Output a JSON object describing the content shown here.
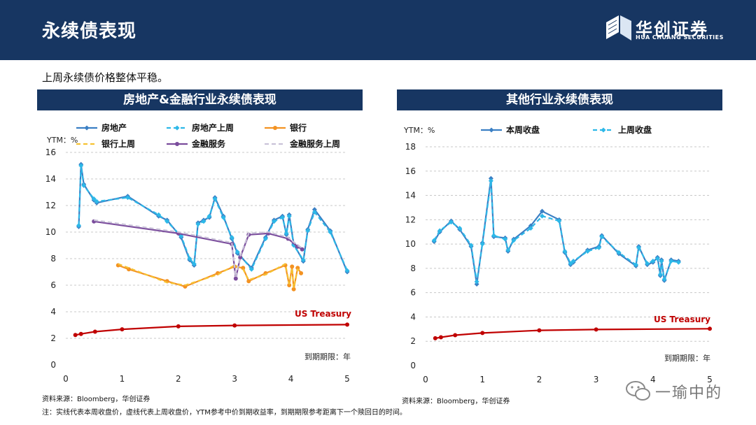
{
  "header": {
    "title": "永续债表现"
  },
  "logo": {
    "name": "华创证券",
    "sub": "HUA CHUANG SECURITIES"
  },
  "subtitle": "上周永续债价格整体平稳。",
  "panel_left": {
    "title": "房地产&金融行业永续债表现"
  },
  "panel_right": {
    "title": "其他行业永续债表现"
  },
  "source_left": "资料来源：Bloomberg，华创证券",
  "source_right": "资料来源：Bloomberg，华创证券",
  "footnote": "注：实线代表本周收盘价，虚线代表上周收盘价，YTM参考中价到期收益率，到期期限参考距离下一个赎回日的时间。",
  "watermark": "一瑜中的",
  "colors": {
    "navy": "#173662",
    "blue": "#3a7fc4",
    "cyan": "#2db8e8",
    "orange": "#f39222",
    "yellow": "#f6c233",
    "purple": "#7a4c9c",
    "lavender": "#c9c2d8",
    "red": "#c00000"
  },
  "chart_data": [
    {
      "type": "line",
      "title": "房地产&金融行业永续债表现",
      "ylabel": "YTM：%",
      "xlabel": "到期期限：年",
      "xlim": [
        0,
        5
      ],
      "ylim": [
        0,
        16
      ],
      "xticks": [
        0,
        1,
        2,
        3,
        4,
        5
      ],
      "yticks": [
        0,
        2,
        4,
        6,
        8,
        10,
        12,
        14,
        16
      ],
      "annotation": "US Treasury",
      "legend": [
        "房地产",
        "房地产上周",
        "银行",
        "银行上周",
        "金融服务",
        "金融服务上周"
      ],
      "series": [
        {
          "name": "房地产",
          "style": "solid",
          "color": "#3a7fc4",
          "marker": "diamond",
          "x": [
            0.23,
            0.27,
            0.32,
            0.5,
            0.55,
            1.1,
            1.65,
            1.8,
            2.05,
            2.2,
            2.28,
            2.35,
            2.45,
            2.55,
            2.65,
            2.8,
            2.95,
            3.05,
            3.3,
            3.55,
            3.7,
            3.85,
            3.92,
            3.97,
            4.05,
            4.22,
            4.3,
            4.42,
            4.7,
            5.0
          ],
          "y": [
            10.4,
            15.1,
            13.6,
            12.4,
            12.2,
            12.7,
            11.2,
            10.9,
            9.6,
            7.9,
            7.5,
            10.7,
            10.9,
            11.1,
            12.6,
            11.2,
            9.5,
            8.4,
            7.3,
            9.6,
            10.9,
            11.2,
            9.8,
            11.3,
            9.1,
            7.8,
            10.2,
            11.7,
            10.1,
            7.0
          ]
        },
        {
          "name": "房地产上周",
          "style": "dashed",
          "color": "#2db8e8",
          "marker": "diamond",
          "x": [
            0.23,
            0.27,
            0.32,
            0.5,
            0.55,
            1.1,
            1.65,
            1.8,
            2.05,
            2.2,
            2.28,
            2.35,
            2.45,
            2.55,
            2.65,
            2.8,
            2.95,
            3.05,
            3.3,
            3.55,
            3.7,
            3.85,
            3.92,
            3.97,
            4.05,
            4.22,
            4.3,
            4.42,
            4.7,
            5.0
          ],
          "y": [
            10.5,
            15.0,
            13.5,
            12.5,
            12.3,
            12.6,
            11.3,
            10.8,
            9.7,
            8.0,
            7.6,
            10.6,
            10.8,
            11.2,
            12.5,
            11.1,
            9.6,
            8.5,
            7.2,
            9.5,
            10.8,
            11.1,
            9.9,
            11.2,
            9.0,
            7.9,
            10.1,
            11.5,
            10.0,
            7.1
          ]
        },
        {
          "name": "银行",
          "style": "solid",
          "color": "#f39222",
          "marker": "circle",
          "x": [
            0.93,
            1.12,
            1.8,
            2.12,
            2.7,
            3.0,
            3.15,
            3.25,
            3.55,
            3.9,
            3.97,
            4.02,
            4.05,
            4.12,
            4.18
          ],
          "y": [
            7.5,
            7.2,
            6.3,
            5.9,
            6.9,
            7.4,
            7.3,
            6.3,
            6.9,
            7.5,
            6.0,
            7.4,
            5.7,
            7.3,
            6.9
          ]
        },
        {
          "name": "银行上周",
          "style": "dashed",
          "color": "#f6c233",
          "marker": "none",
          "x": [
            0.93,
            1.12,
            1.8,
            2.12,
            2.7,
            3.0,
            3.15,
            3.25,
            3.55,
            3.9,
            3.97,
            4.02,
            4.05,
            4.12,
            4.18
          ],
          "y": [
            7.6,
            7.3,
            6.2,
            6.0,
            6.8,
            7.5,
            7.2,
            6.4,
            6.8,
            7.6,
            6.1,
            7.3,
            5.8,
            7.2,
            7.0
          ]
        },
        {
          "name": "金融服务",
          "style": "solid",
          "color": "#7a4c9c",
          "marker": "circle",
          "x": [
            0.5,
            2.0,
            2.95,
            3.02,
            3.1,
            3.25,
            3.6,
            3.95,
            4.12,
            4.2
          ],
          "y": [
            10.8,
            9.9,
            9.1,
            6.5,
            8.1,
            9.8,
            9.9,
            9.5,
            8.9,
            8.7
          ]
        },
        {
          "name": "金融服务上周",
          "style": "dashed",
          "color": "#c9c2d8",
          "marker": "none",
          "x": [
            0.5,
            2.0,
            2.95,
            3.02,
            3.1,
            3.25,
            3.6,
            3.95,
            4.12,
            4.2
          ],
          "y": [
            10.9,
            10.0,
            9.2,
            6.6,
            8.2,
            9.9,
            10.0,
            9.6,
            9.0,
            8.8
          ]
        },
        {
          "name": "US Treasury",
          "style": "solid",
          "color": "#c00000",
          "marker": "circle",
          "x": [
            0.17,
            0.27,
            0.52,
            1.0,
            2.0,
            3.0,
            5.0
          ],
          "y": [
            2.25,
            2.33,
            2.5,
            2.68,
            2.9,
            2.97,
            3.03
          ]
        }
      ]
    },
    {
      "type": "line",
      "title": "其他行业永续债表现",
      "ylabel": "YTM：%",
      "xlabel": "到期期限：年",
      "xlim": [
        0,
        5
      ],
      "ylim": [
        0,
        18
      ],
      "xticks": [
        0,
        1,
        2,
        3,
        4,
        5
      ],
      "yticks": [
        0,
        2,
        4,
        6,
        8,
        10,
        12,
        14,
        16,
        18
      ],
      "annotation": "US Treasury",
      "legend": [
        "本周收盘",
        "上周收盘"
      ],
      "series": [
        {
          "name": "本周收盘",
          "style": "solid",
          "color": "#3a7fc4",
          "marker": "diamond",
          "x": [
            0.15,
            0.25,
            0.45,
            0.6,
            0.8,
            0.9,
            1.0,
            1.15,
            1.2,
            1.4,
            1.45,
            1.55,
            1.85,
            2.05,
            2.35,
            2.45,
            2.55,
            2.6,
            2.85,
            3.05,
            3.1,
            3.4,
            3.7,
            3.75,
            3.9,
            4.0,
            4.08,
            4.13,
            4.15,
            4.2,
            4.32,
            4.45
          ],
          "y": [
            10.2,
            11.0,
            11.9,
            11.2,
            9.8,
            6.7,
            10.1,
            15.4,
            10.6,
            10.5,
            9.4,
            10.4,
            11.5,
            12.7,
            12.0,
            9.3,
            8.3,
            8.5,
            9.5,
            9.8,
            10.7,
            9.2,
            8.2,
            9.8,
            8.3,
            8.5,
            8.9,
            7.4,
            8.7,
            7.0,
            8.7,
            8.6
          ]
        },
        {
          "name": "上周收盘",
          "style": "dashed",
          "color": "#2db8e8",
          "marker": "diamond",
          "x": [
            0.15,
            0.25,
            0.45,
            0.6,
            0.8,
            0.9,
            1.0,
            1.15,
            1.2,
            1.4,
            1.45,
            1.55,
            1.85,
            2.05,
            2.35,
            2.45,
            2.55,
            2.6,
            2.85,
            3.05,
            3.1,
            3.4,
            3.7,
            3.75,
            3.9,
            4.0,
            4.08,
            4.13,
            4.15,
            4.2,
            4.32,
            4.45
          ],
          "y": [
            10.3,
            11.1,
            11.8,
            11.3,
            9.9,
            6.9,
            10.0,
            15.2,
            10.7,
            10.4,
            9.5,
            10.3,
            11.3,
            12.3,
            11.9,
            9.4,
            8.4,
            8.6,
            9.4,
            9.7,
            10.6,
            9.3,
            8.3,
            9.7,
            8.4,
            8.6,
            8.8,
            7.5,
            8.6,
            7.1,
            8.6,
            8.5
          ]
        },
        {
          "name": "US Treasury",
          "style": "solid",
          "color": "#c00000",
          "marker": "circle",
          "x": [
            0.17,
            0.27,
            0.52,
            1.0,
            2.0,
            3.0,
            5.0
          ],
          "y": [
            2.25,
            2.33,
            2.5,
            2.68,
            2.9,
            2.97,
            3.03
          ]
        }
      ]
    }
  ]
}
